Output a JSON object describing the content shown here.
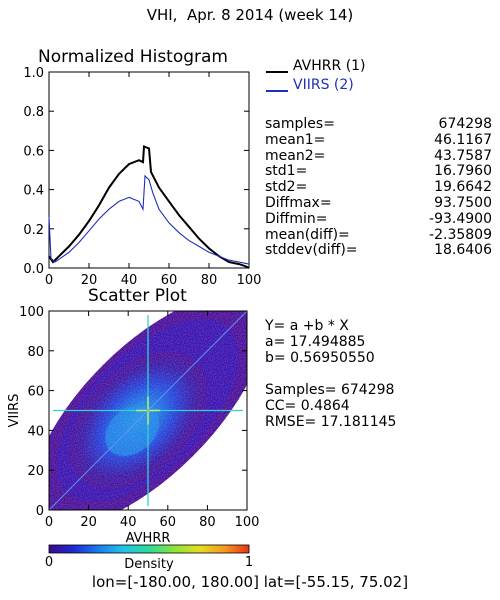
{
  "title": "VHI,  Apr. 8 2014 (week 14)",
  "histogram": {
    "title": "Normalized Histogram",
    "legend": [
      {
        "label": "AVHRR (1)",
        "color": "#000000"
      },
      {
        "label": "VIIRS (2)",
        "color": "#1c2fbf"
      }
    ],
    "stats": [
      {
        "label": "samples=",
        "value": "674298"
      },
      {
        "label": "mean1=",
        "value": "46.1167"
      },
      {
        "label": "mean2=",
        "value": "43.7587"
      },
      {
        "label": "std1=",
        "value": "16.7960"
      },
      {
        "label": "std2=",
        "value": "19.6642"
      },
      {
        "label": "Diffmax=",
        "value": "93.7500"
      },
      {
        "label": "Diffmin=",
        "value": "-93.4900"
      },
      {
        "label": "mean(diff)=",
        "value": "-2.35809"
      },
      {
        "label": "stddev(diff)=",
        "value": "18.6406"
      }
    ]
  },
  "scatter": {
    "title": "Scatter Plot",
    "equation": "Y= a +b * X",
    "a": "a= 17.494885",
    "b": "b= 0.56950550",
    "samples": "Samples= 674298",
    "cc": "CC=  0.4864",
    "rmse": "RMSE= 17.181145"
  },
  "colorbar": {
    "label": "Density",
    "min_label": "0",
    "max_label": "1",
    "colors": [
      "#3a0a8f",
      "#1f2bd6",
      "#1a7ef0",
      "#22c4e8",
      "#2fd89a",
      "#8ce43a",
      "#e2de22",
      "#f79a1e",
      "#e8321a"
    ]
  },
  "footer": "lon=[-180.00, 180.00] lat=[-55.15, 75.02]",
  "chart_data": [
    {
      "type": "line",
      "title": "Normalized Histogram",
      "xlim": [
        0,
        100
      ],
      "ylim": [
        0,
        1.0
      ],
      "xticks": [
        "0",
        "20",
        "40",
        "60",
        "80",
        "100"
      ],
      "yticks": [
        "0.0",
        "0.2",
        "0.4",
        "0.6",
        "0.8",
        "1.0"
      ],
      "series": [
        {
          "name": "AVHRR (1)",
          "color": "#000000",
          "x": [
            0,
            2,
            5,
            10,
            15,
            20,
            25,
            30,
            35,
            40,
            45,
            47,
            47.5,
            50,
            51,
            55,
            60,
            65,
            70,
            75,
            80,
            85,
            90,
            95,
            98,
            100
          ],
          "y": [
            0.06,
            0.03,
            0.06,
            0.11,
            0.17,
            0.24,
            0.32,
            0.41,
            0.48,
            0.53,
            0.55,
            0.54,
            0.62,
            0.61,
            0.49,
            0.41,
            0.34,
            0.27,
            0.21,
            0.15,
            0.1,
            0.06,
            0.03,
            0.02,
            0.01,
            0.0
          ]
        },
        {
          "name": "VIIRS (2)",
          "color": "#1c2fbf",
          "x": [
            0,
            1,
            3,
            10,
            15,
            20,
            25,
            30,
            35,
            40,
            45,
            47,
            48,
            50,
            52,
            55,
            60,
            65,
            70,
            75,
            80,
            85,
            90,
            95,
            100
          ],
          "y": [
            0.26,
            0.05,
            0.03,
            0.08,
            0.13,
            0.19,
            0.25,
            0.3,
            0.34,
            0.36,
            0.34,
            0.3,
            0.47,
            0.45,
            0.38,
            0.3,
            0.23,
            0.18,
            0.14,
            0.11,
            0.08,
            0.06,
            0.04,
            0.03,
            0.02
          ]
        }
      ]
    },
    {
      "type": "scatter",
      "title": "Scatter Plot",
      "xlabel": "AVHRR",
      "ylabel": "VIIRS",
      "xlim": [
        0,
        100
      ],
      "ylim": [
        0,
        100
      ],
      "xticks": [
        "0",
        "20",
        "40",
        "60",
        "80",
        "100"
      ],
      "yticks": [
        "0",
        "20",
        "40",
        "60",
        "80",
        "100"
      ],
      "fit": {
        "a": 17.494885,
        "b": 0.5695055
      },
      "samples": 674298,
      "cc": 0.4864,
      "rmse": 17.181145
    }
  ]
}
